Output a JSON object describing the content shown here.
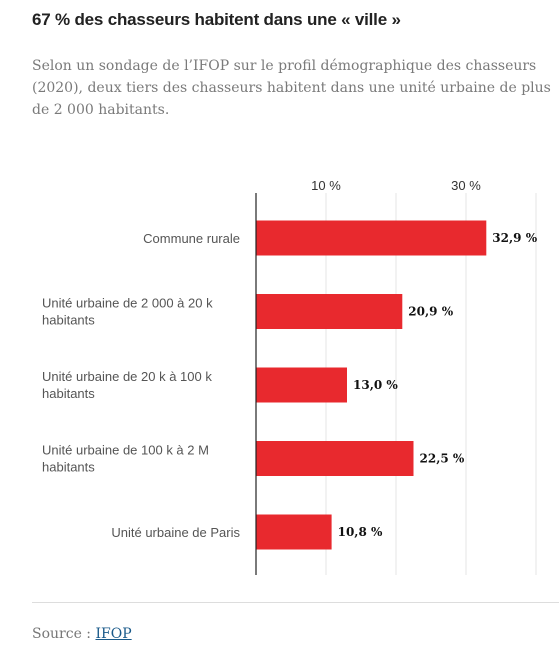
{
  "header": {
    "title": "67 % des chasseurs habitent dans une « ville »",
    "subtitle": "Selon un sondage de l’IFOP sur le profil démographique des chasseurs (2020), deux tiers des chasseurs habitent dans une unité urbaine de plus de 2 000 habitants."
  },
  "chart_data": {
    "type": "bar",
    "orientation": "horizontal",
    "categories": [
      [
        "Commune rurale"
      ],
      [
        "Unité urbaine de 2 000 à 20 k",
        "habitants"
      ],
      [
        "Unité urbaine de 20 k à 100 k",
        "habitants"
      ],
      [
        "Unité urbaine de 100 k à 2 M",
        "habitants"
      ],
      [
        "Unité urbaine de Paris"
      ]
    ],
    "values": [
      32.9,
      20.9,
      13.0,
      22.5,
      10.8
    ],
    "value_labels": [
      "32,9 %",
      "20,9 %",
      "13,0 %",
      "22,5 %",
      "10,8 %"
    ],
    "xticks": [
      {
        "value": 10,
        "label": "10 %"
      },
      {
        "value": 30,
        "label": "30 %"
      }
    ],
    "xlim": [
      0,
      40
    ],
    "grid": true,
    "bar_color": "#e8292e"
  },
  "footer": {
    "source_prefix": "Source : ",
    "source_link": "IFOP"
  }
}
